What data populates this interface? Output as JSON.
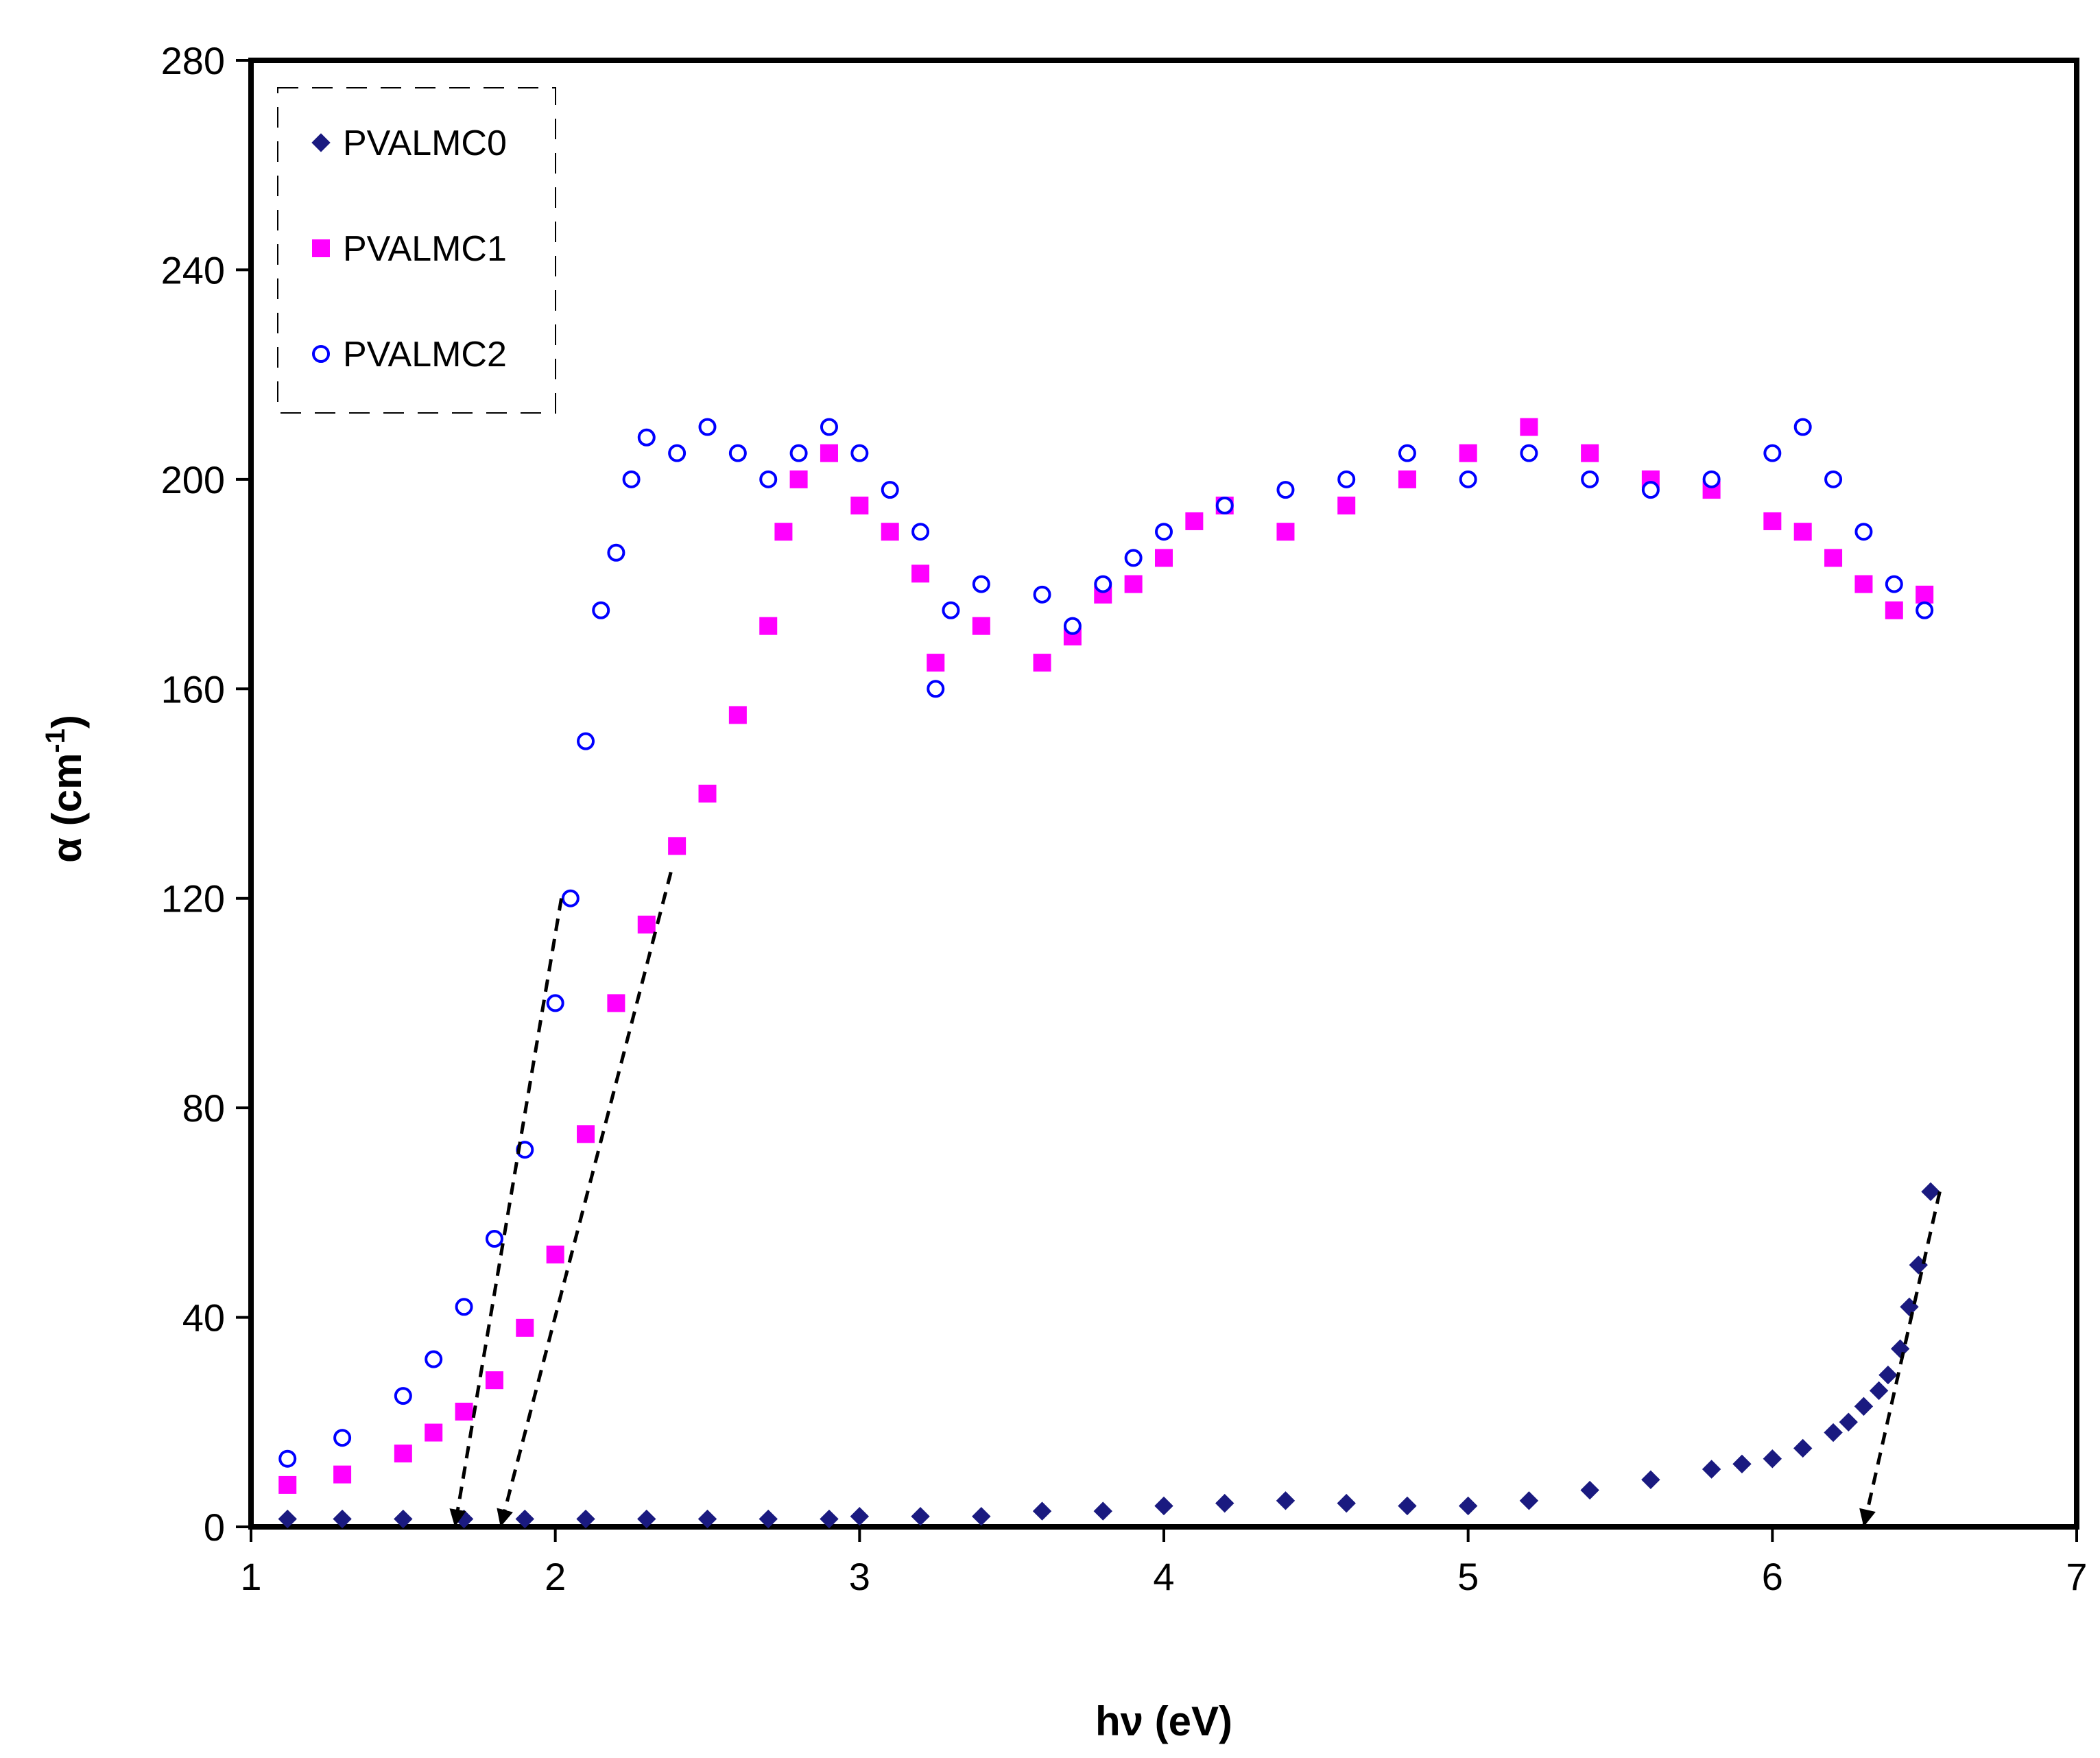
{
  "chart_data": {
    "type": "scatter",
    "title": "",
    "xlabel": "hν (eV)",
    "ylabel": "α (cm-1)",
    "ylabel_main": "α (cm",
    "ylabel_sup": "-1",
    "ylabel_close": ")",
    "xlim": [
      1,
      7
    ],
    "ylim": [
      0,
      280
    ],
    "xticks": [
      1,
      2,
      3,
      4,
      5,
      6,
      7
    ],
    "yticks": [
      0,
      40,
      80,
      120,
      160,
      200,
      240,
      280
    ],
    "grid": false,
    "legend_position": "top-left",
    "series": [
      {
        "name": "PVALMC0",
        "marker": "diamond",
        "color": "#1a1a80",
        "points": [
          [
            1.12,
            1.5
          ],
          [
            1.3,
            1.5
          ],
          [
            1.5,
            1.5
          ],
          [
            1.7,
            1.5
          ],
          [
            1.9,
            1.5
          ],
          [
            2.1,
            1.5
          ],
          [
            2.3,
            1.5
          ],
          [
            2.5,
            1.5
          ],
          [
            2.7,
            1.5
          ],
          [
            2.9,
            1.5
          ],
          [
            3.0,
            2
          ],
          [
            3.2,
            2
          ],
          [
            3.4,
            2
          ],
          [
            3.6,
            3
          ],
          [
            3.8,
            3
          ],
          [
            4.0,
            4
          ],
          [
            4.2,
            4.5
          ],
          [
            4.4,
            5
          ],
          [
            4.6,
            4.5
          ],
          [
            4.8,
            4
          ],
          [
            5.0,
            4
          ],
          [
            5.2,
            5
          ],
          [
            5.4,
            7
          ],
          [
            5.6,
            9
          ],
          [
            5.8,
            11
          ],
          [
            5.9,
            12
          ],
          [
            6.0,
            13
          ],
          [
            6.1,
            15
          ],
          [
            6.2,
            18
          ],
          [
            6.25,
            20
          ],
          [
            6.3,
            23
          ],
          [
            6.35,
            26
          ],
          [
            6.38,
            29
          ],
          [
            6.42,
            34
          ],
          [
            6.45,
            42
          ],
          [
            6.48,
            50
          ],
          [
            6.52,
            64
          ]
        ]
      },
      {
        "name": "PVALMC1",
        "marker": "square",
        "color": "#ff00ff",
        "points": [
          [
            1.12,
            8
          ],
          [
            1.3,
            10
          ],
          [
            1.5,
            14
          ],
          [
            1.6,
            18
          ],
          [
            1.7,
            22
          ],
          [
            1.8,
            28
          ],
          [
            1.9,
            38
          ],
          [
            2.0,
            52
          ],
          [
            2.1,
            75
          ],
          [
            2.2,
            100
          ],
          [
            2.3,
            115
          ],
          [
            2.4,
            130
          ],
          [
            2.5,
            140
          ],
          [
            2.6,
            155
          ],
          [
            2.7,
            172
          ],
          [
            2.75,
            190
          ],
          [
            2.8,
            200
          ],
          [
            2.9,
            205
          ],
          [
            3.0,
            195
          ],
          [
            3.1,
            190
          ],
          [
            3.2,
            182
          ],
          [
            3.25,
            165
          ],
          [
            3.4,
            172
          ],
          [
            3.6,
            165
          ],
          [
            3.7,
            170
          ],
          [
            3.8,
            178
          ],
          [
            3.9,
            180
          ],
          [
            4.0,
            185
          ],
          [
            4.1,
            192
          ],
          [
            4.2,
            195
          ],
          [
            4.4,
            190
          ],
          [
            4.6,
            195
          ],
          [
            4.8,
            200
          ],
          [
            5.0,
            205
          ],
          [
            5.2,
            210
          ],
          [
            5.4,
            205
          ],
          [
            5.6,
            200
          ],
          [
            5.8,
            198
          ],
          [
            6.0,
            192
          ],
          [
            6.1,
            190
          ],
          [
            6.2,
            185
          ],
          [
            6.3,
            180
          ],
          [
            6.4,
            175
          ],
          [
            6.5,
            178
          ]
        ]
      },
      {
        "name": "PVALMC2",
        "marker": "circle",
        "color": "#0000ff",
        "points": [
          [
            1.12,
            13
          ],
          [
            1.3,
            17
          ],
          [
            1.5,
            25
          ],
          [
            1.6,
            32
          ],
          [
            1.7,
            42
          ],
          [
            1.8,
            55
          ],
          [
            1.9,
            72
          ],
          [
            2.0,
            100
          ],
          [
            2.05,
            120
          ],
          [
            2.1,
            150
          ],
          [
            2.15,
            175
          ],
          [
            2.2,
            186
          ],
          [
            2.25,
            200
          ],
          [
            2.3,
            208
          ],
          [
            2.4,
            205
          ],
          [
            2.5,
            210
          ],
          [
            2.6,
            205
          ],
          [
            2.7,
            200
          ],
          [
            2.8,
            205
          ],
          [
            2.9,
            210
          ],
          [
            3.0,
            205
          ],
          [
            3.1,
            198
          ],
          [
            3.2,
            190
          ],
          [
            3.25,
            160
          ],
          [
            3.3,
            175
          ],
          [
            3.4,
            180
          ],
          [
            3.6,
            178
          ],
          [
            3.7,
            172
          ],
          [
            3.8,
            180
          ],
          [
            3.9,
            185
          ],
          [
            4.0,
            190
          ],
          [
            4.2,
            195
          ],
          [
            4.4,
            198
          ],
          [
            4.6,
            200
          ],
          [
            4.8,
            205
          ],
          [
            5.0,
            200
          ],
          [
            5.2,
            205
          ],
          [
            5.4,
            200
          ],
          [
            5.6,
            198
          ],
          [
            5.8,
            200
          ],
          [
            6.0,
            205
          ],
          [
            6.1,
            210
          ],
          [
            6.2,
            200
          ],
          [
            6.3,
            190
          ],
          [
            6.4,
            180
          ],
          [
            6.5,
            175
          ]
        ]
      }
    ],
    "extrapolation_lines": [
      {
        "series": "PVALMC2",
        "from": [
          2.02,
          120
        ],
        "to": [
          1.67,
          0
        ]
      },
      {
        "series": "PVALMC1",
        "from": [
          2.38,
          125
        ],
        "to": [
          1.82,
          0
        ]
      },
      {
        "series": "PVALMC0",
        "from": [
          6.55,
          64
        ],
        "to": [
          6.3,
          0
        ]
      }
    ]
  }
}
